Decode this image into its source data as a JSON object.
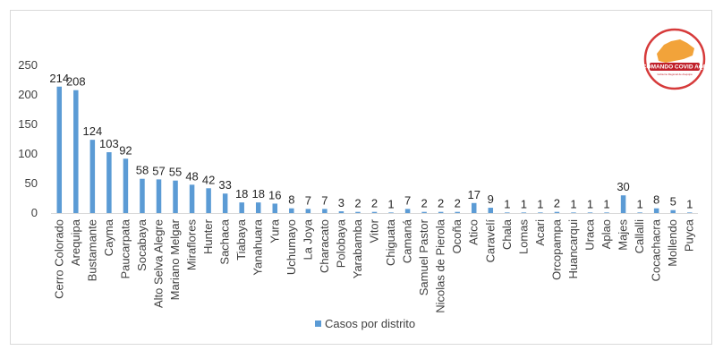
{
  "chart_data": {
    "type": "bar",
    "title": "",
    "xlabel": "",
    "ylabel": "",
    "ylim": [
      0,
      250
    ],
    "yticks": [
      0,
      50,
      100,
      150,
      200,
      250
    ],
    "grid": false,
    "legend_position": "bottom",
    "bar_color": "#5b9bd5",
    "categories": [
      "Cerro Colorado",
      "Arequipa",
      "Bustamante",
      "Cayma",
      "Paucarpata",
      "Socabaya",
      "Alto Selva Alegre",
      "Mariano Melgar",
      "Miraflores",
      "Hunter",
      "Sachaca",
      "Tiabaya",
      "Yanahuara",
      "Yura",
      "Uchumayo",
      "La Joya",
      "Characato",
      "Polobaya",
      "Yarabamba",
      "Vitor",
      "Chiguata",
      "Camaná",
      "Samuel Pastor",
      "Nicolas de Pierola",
      "Ocoña",
      "Atico",
      "Caravelí",
      "Chala",
      "Lomas",
      "Acari",
      "Orcopampa",
      "Huancarqui",
      "Uraca",
      "Aplao",
      "Majes",
      "Callalli",
      "Cocachacra",
      "Mollendo",
      "Puyca"
    ],
    "series": [
      {
        "name": "Casos por distrito",
        "values": [
          214,
          208,
          124,
          103,
          92,
          58,
          57,
          55,
          48,
          42,
          33,
          18,
          18,
          16,
          8,
          7,
          7,
          3,
          2,
          2,
          1,
          7,
          2,
          2,
          2,
          17,
          9,
          1,
          1,
          1,
          2,
          1,
          1,
          1,
          30,
          1,
          8,
          5,
          1
        ]
      }
    ]
  },
  "logo": {
    "name": "COMANDO COVID AQP",
    "subtitle": "Gobierno Regional de Arequipa"
  }
}
